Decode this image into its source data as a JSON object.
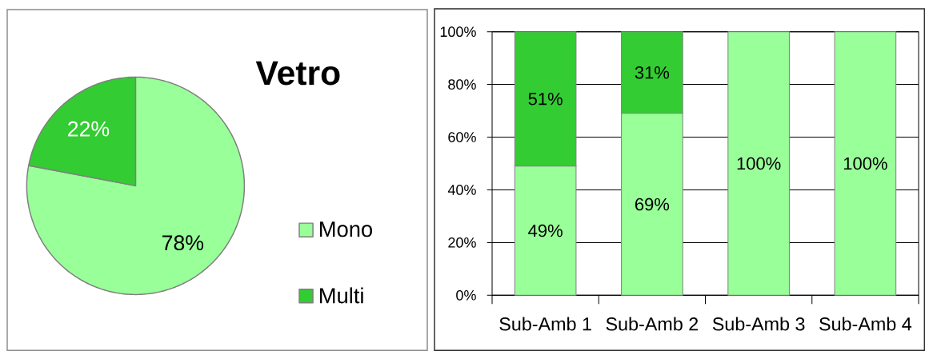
{
  "chart_data": [
    {
      "type": "pie",
      "title": "Vetro",
      "categories": [
        "Mono",
        "Multi"
      ],
      "values": [
        78,
        22
      ],
      "colors": [
        "#99ff99",
        "#33cc33"
      ],
      "value_labels": [
        "78%",
        "22%"
      ],
      "legend": "right"
    },
    {
      "type": "bar",
      "stacked": true,
      "categories": [
        "Sub-Amb 1",
        "Sub-Amb 2",
        "Sub-Amb 3",
        "Sub-Amb 4"
      ],
      "series": [
        {
          "color": "#99ff99",
          "values": [
            49,
            69,
            100,
            100
          ],
          "value_labels": [
            "49%",
            "69%",
            "100%",
            "100%"
          ]
        },
        {
          "color": "#33cc33",
          "values": [
            51,
            31,
            null,
            null
          ],
          "value_labels": [
            "51%",
            "31%",
            null,
            null
          ]
        }
      ],
      "ylim": [
        0,
        100
      ],
      "yticks": [
        {
          "value": 0,
          "label": "0%"
        },
        {
          "value": 20,
          "label": "20%"
        },
        {
          "value": 40,
          "label": "40%"
        },
        {
          "value": 60,
          "label": "60%"
        },
        {
          "value": 80,
          "label": "80%"
        },
        {
          "value": 100,
          "label": "100%"
        }
      ],
      "grid": "y"
    }
  ]
}
